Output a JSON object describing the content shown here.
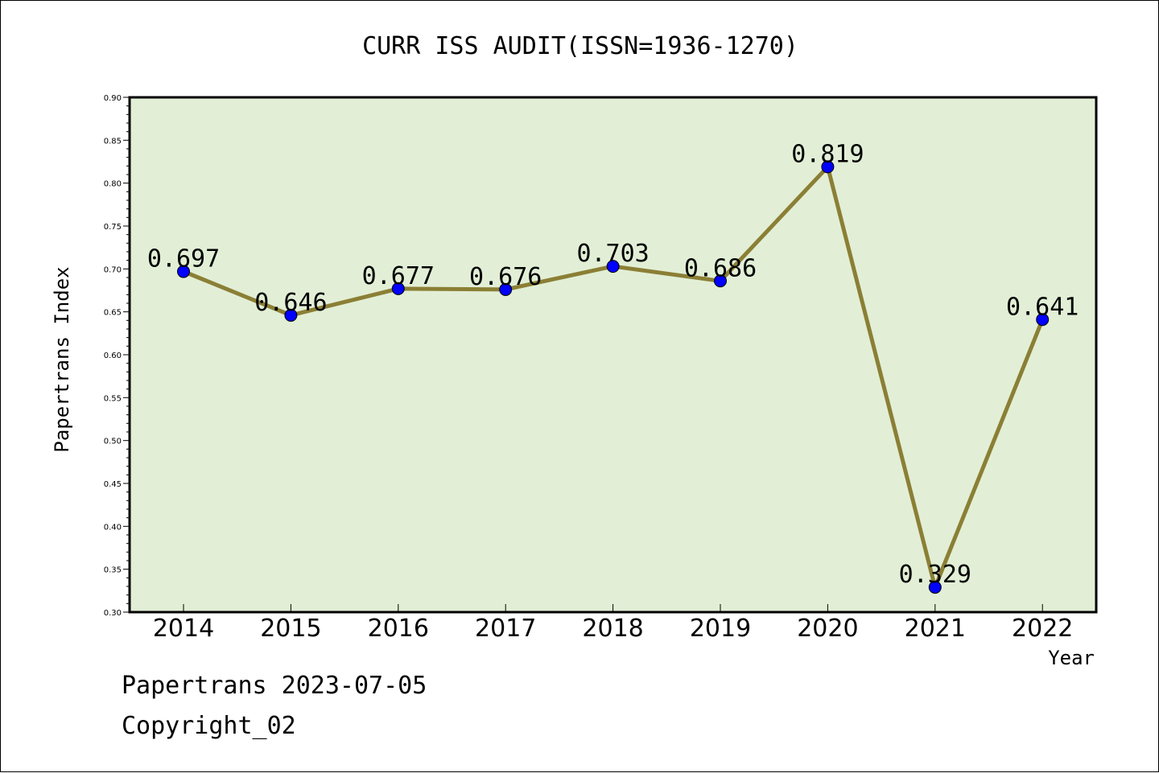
{
  "chart_data": {
    "type": "line",
    "title": "CURR ISS AUDIT(ISSN=1936-1270)",
    "xlabel": "Year",
    "ylabel": "Papertrans Index",
    "categories": [
      "2014",
      "2015",
      "2016",
      "2017",
      "2018",
      "2019",
      "2020",
      "2021",
      "2022"
    ],
    "values": [
      0.697,
      0.646,
      0.677,
      0.676,
      0.703,
      0.686,
      0.819,
      0.329,
      0.641
    ],
    "data_labels": [
      "0.697",
      "0.646",
      "0.677",
      "0.676",
      "0.703",
      "0.686",
      "0.819",
      "0.329",
      "0.641"
    ],
    "ylim": [
      0.3,
      0.9
    ],
    "yticks": [
      "0.30",
      "0.35",
      "0.40",
      "0.45",
      "0.50",
      "0.55",
      "0.60",
      "0.65",
      "0.70",
      "0.75",
      "0.80",
      "0.85",
      "0.90"
    ],
    "grid": false,
    "colors": {
      "plot_background": "#e2efd6",
      "line": "#8b7f35",
      "marker": "#0000ff"
    }
  },
  "footer": {
    "source": "Papertrans 2023-07-05",
    "copyright": "Copyright_02"
  }
}
